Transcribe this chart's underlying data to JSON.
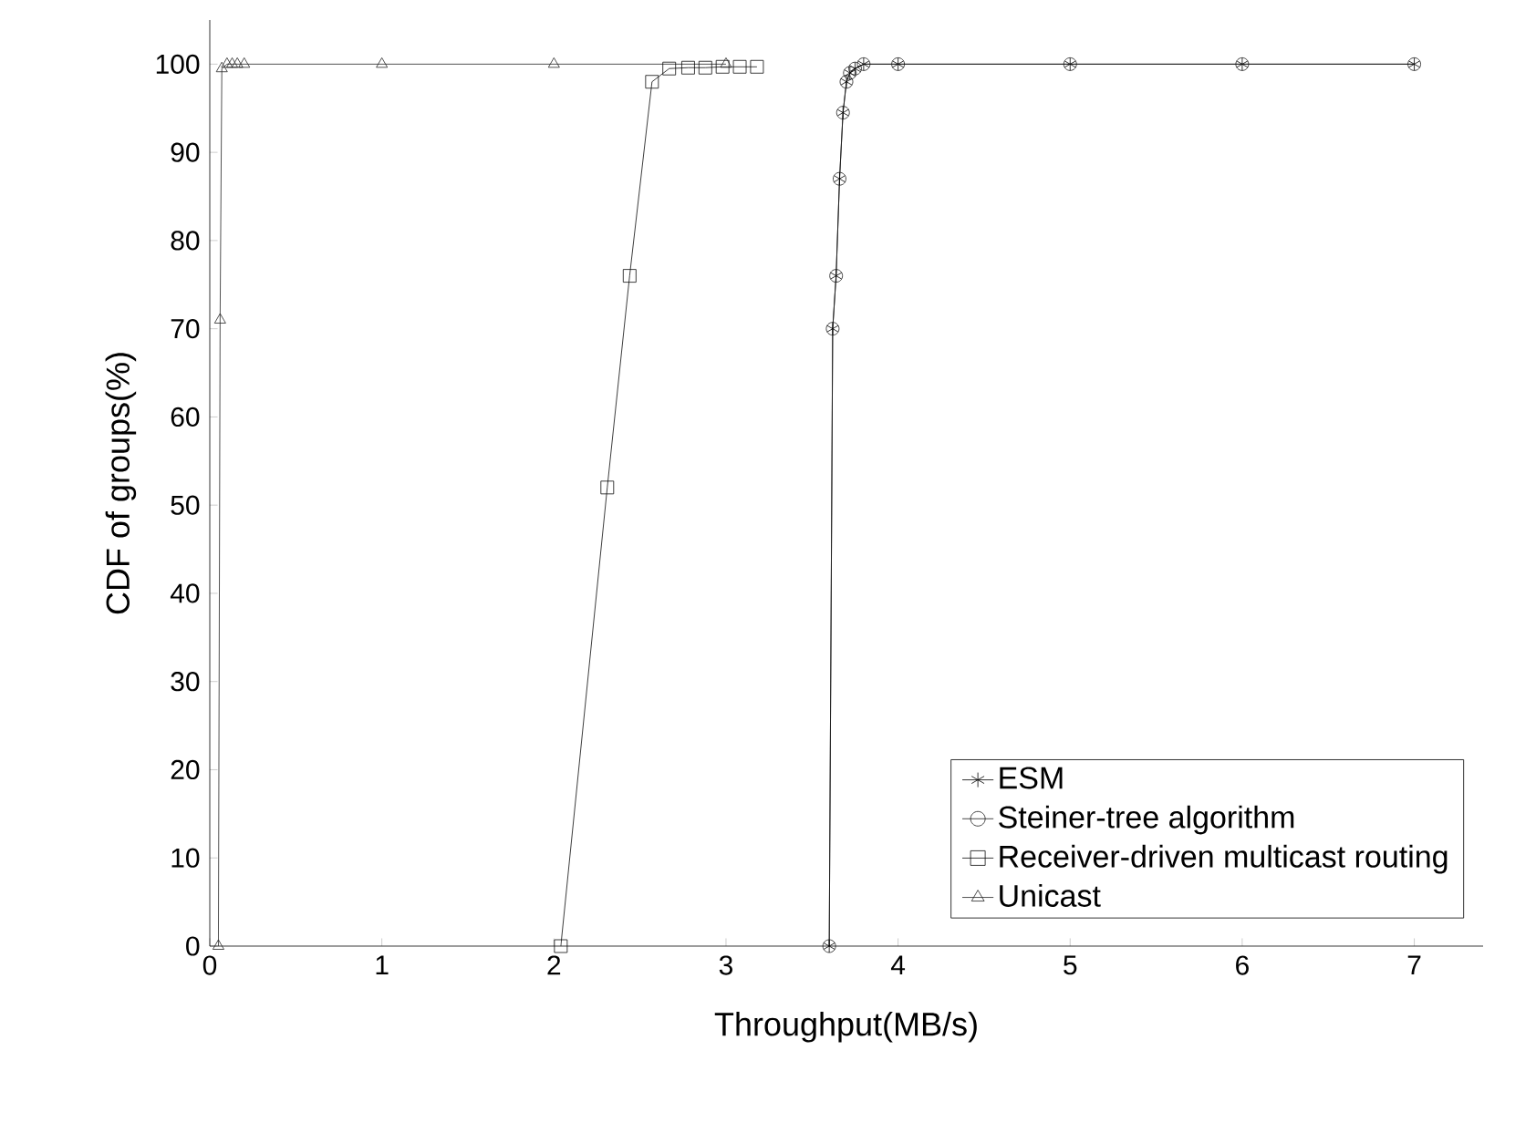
{
  "chart_data": {
    "type": "line",
    "xlabel": "Throughput(MB/s)",
    "ylabel": "CDF of groups(%)",
    "xlim": [
      0,
      7.4
    ],
    "ylim": [
      0,
      105
    ],
    "xticks": [
      0,
      1,
      2,
      3,
      4,
      5,
      6,
      7
    ],
    "yticks": [
      0,
      10,
      20,
      30,
      40,
      50,
      60,
      70,
      80,
      90,
      100
    ],
    "grid": false,
    "legend": "bottom right",
    "line_style": "solid",
    "series": [
      {
        "name": "ESM",
        "color": "#000000",
        "marker": "cross",
        "x": [
          3.6,
          3.62,
          3.64,
          3.66,
          3.68,
          3.7,
          3.72,
          3.75,
          3.8,
          4,
          5,
          6,
          7
        ],
        "values": [
          0,
          70,
          76,
          87,
          94.5,
          98,
          99,
          99.5,
          100,
          100,
          100,
          100,
          100
        ]
      },
      {
        "name": "Steiner-tree algorithm",
        "color": "#1a1a1a",
        "marker": "circle",
        "x": [
          3.6,
          3.62,
          3.64,
          3.66,
          3.68,
          3.7,
          3.72,
          3.75,
          3.8,
          4,
          5,
          6,
          7
        ],
        "values": [
          0,
          70,
          76,
          87,
          94.5,
          98,
          99,
          99.5,
          100,
          100,
          100,
          100,
          100
        ]
      },
      {
        "name": "Receiver-driven multicast routing",
        "color": "#0d0d0d",
        "marker": "square",
        "x": [
          2.04,
          2.31,
          2.44,
          2.57,
          2.67,
          2.78,
          2.88,
          2.98,
          3.08,
          3.18
        ],
        "values": [
          0,
          52,
          76,
          98,
          99.5,
          99.6,
          99.6,
          99.7,
          99.7,
          99.7
        ]
      },
      {
        "name": "Unicast",
        "color": "#262626",
        "marker": "triangle",
        "x": [
          0.05,
          0.06,
          0.07,
          0.1,
          0.13,
          0.16,
          0.2,
          1,
          2,
          3
        ],
        "values": [
          0,
          71,
          99.5,
          100,
          100,
          100,
          100,
          100,
          100,
          100
        ]
      }
    ]
  }
}
